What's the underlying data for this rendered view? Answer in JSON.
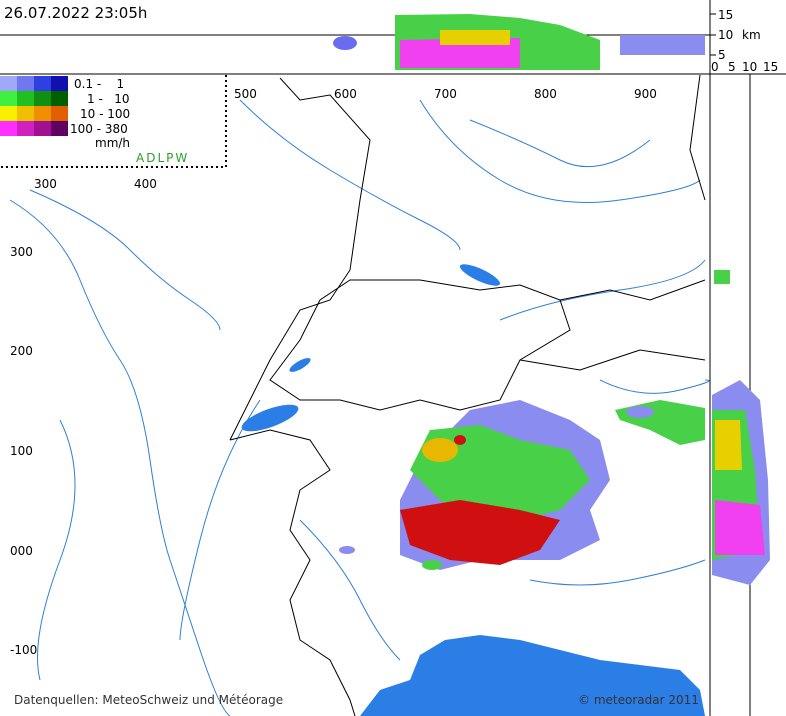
{
  "timestamp": "26.07.2022 23:05h",
  "legend": {
    "rows": [
      "0.1 -    1",
      "1 -   10",
      "10 - 100",
      "100 - 380"
    ],
    "unit": "mm/h"
  },
  "stations": "ADLPW",
  "x_coords_top": [
    "500",
    "600",
    "700",
    "800",
    "900"
  ],
  "x_coords_inner": [
    "300",
    "400"
  ],
  "y_coords": [
    "300",
    "200",
    "100",
    "000",
    "-100"
  ],
  "height_axis": {
    "levels": [
      "15",
      "10",
      "5"
    ],
    "unit": "km",
    "bottom_labels": [
      "0",
      "5",
      "10",
      "15"
    ]
  },
  "footer": {
    "sources": "Datenquellen: MeteoSchweiz und Météorage",
    "copyright": "© meteoradar 2011"
  }
}
